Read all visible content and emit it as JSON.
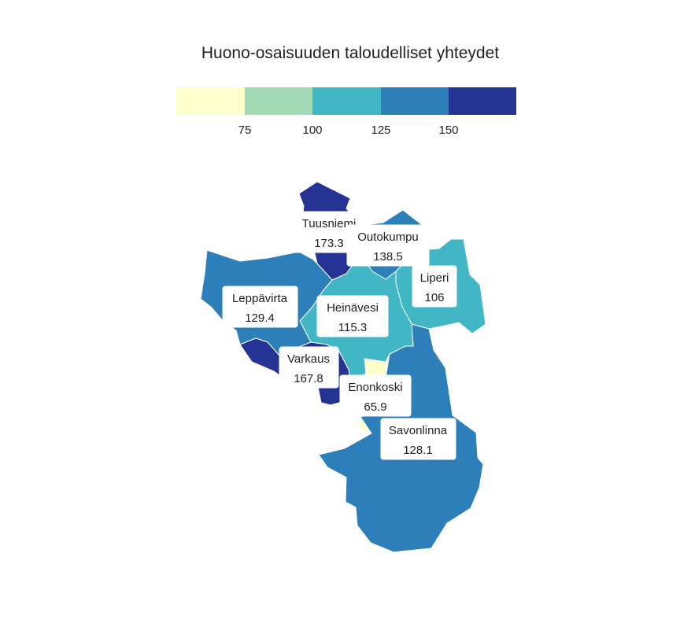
{
  "title": "Huono-osaisuuden taloudelliset yhteydet",
  "legend": {
    "colors": [
      "#ffffcc",
      "#a1dab4",
      "#41b6c4",
      "#2c7fb8",
      "#253494"
    ],
    "ticks": [
      "75",
      "100",
      "125",
      "150"
    ]
  },
  "regions": [
    {
      "name": "Tuusniemi",
      "value": "173.3",
      "color": "#253494"
    },
    {
      "name": "Outokumpu",
      "value": "138.5",
      "color": "#2c7fb8"
    },
    {
      "name": "Liperi",
      "value": "106",
      "color": "#41b6c4"
    },
    {
      "name": "Leppävirta",
      "value": "129.4",
      "color": "#2c7fb8"
    },
    {
      "name": "Heinävesi",
      "value": "115.3",
      "color": "#41b6c4"
    },
    {
      "name": "Varkaus",
      "value": "167.8",
      "color": "#253494"
    },
    {
      "name": "Enonkoski",
      "value": "65.9",
      "color": "#ffffcc"
    },
    {
      "name": "Savonlinna",
      "value": "128.1",
      "color": "#2c7fb8"
    }
  ]
}
